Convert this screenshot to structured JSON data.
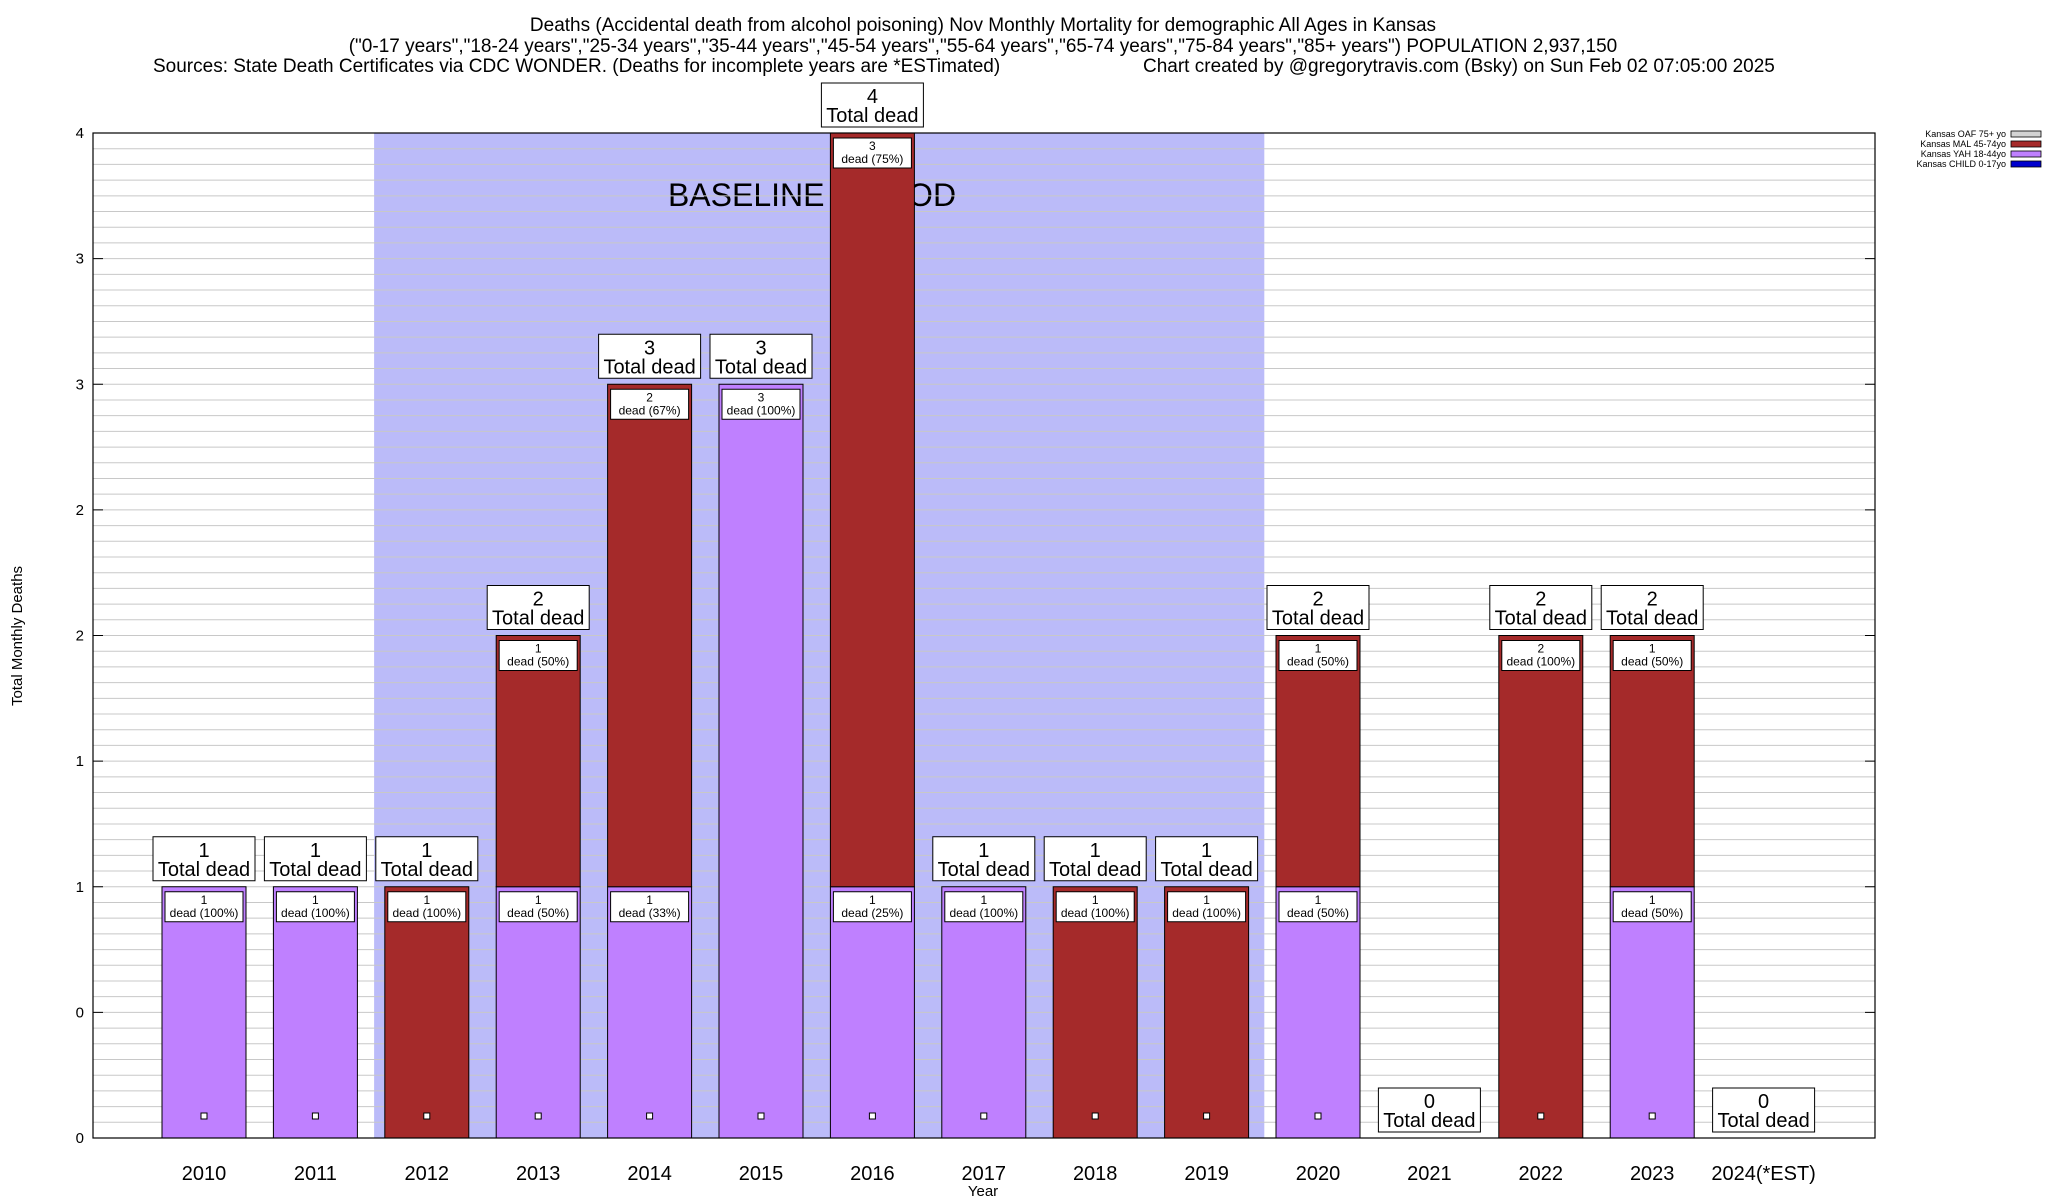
{
  "chart_data": {
    "type": "bar",
    "stacked": true,
    "title_lines": [
      "Deaths (Accidental death from alcohol poisoning) Nov Monthly Mortality for demographic All Ages in Kansas",
      "(\"0-17 years\",\"18-24 years\",\"25-34 years\",\"35-44 years\",\"45-54 years\",\"55-64 years\",\"65-74 years\",\"75-84 years\",\"85+ years\") POPULATION 2,937,150"
    ],
    "sources_note": "Sources: State Death Certificates via CDC WONDER. (Deaths for incomplete years are *ESTimated)",
    "credit": "Chart created by @gregorytravis.com (Bsky) on Sun Feb 02 07:05:00 2025",
    "xlabel": "Year",
    "ylabel": "Total Monthly Deaths",
    "ylim": [
      0,
      4
    ],
    "yticks": [
      0,
      0.5,
      1,
      1.5,
      2,
      2.5,
      3,
      3.5,
      4
    ],
    "ytick_labels": [
      "0",
      "0",
      "1",
      "1",
      "2",
      "2",
      "3",
      "3",
      "4"
    ],
    "grid": true,
    "legend_position": "top-right, outside plot",
    "categories": [
      "2010",
      "2011",
      "2012",
      "2013",
      "2014",
      "2015",
      "2016",
      "2017",
      "2018",
      "2019",
      "2020",
      "2021",
      "2022",
      "2023",
      "2024(*EST)"
    ],
    "series": [
      {
        "name": "Kansas OAF 75+ yo",
        "color": "#d3d3d3",
        "values": [
          0,
          0,
          0,
          0,
          0,
          0,
          0,
          0,
          0,
          0,
          0,
          0,
          0,
          0,
          0
        ]
      },
      {
        "name": "Kansas MAL 45-74yo",
        "color": "#a52a2a",
        "values": [
          0,
          0,
          1,
          1,
          2,
          0,
          3,
          0,
          1,
          1,
          1,
          0,
          2,
          1,
          0
        ]
      },
      {
        "name": "Kansas YAH 18-44yo",
        "color": "#bf80ff",
        "values": [
          1,
          1,
          0,
          1,
          1,
          3,
          1,
          1,
          0,
          0,
          1,
          0,
          0,
          1,
          0
        ]
      },
      {
        "name": "Kansas CHILD 0-17yo",
        "color": "#0000cd",
        "values": [
          0,
          0,
          0,
          0,
          0,
          0,
          0,
          0,
          0,
          0,
          0,
          0,
          0,
          0,
          0
        ]
      }
    ],
    "totals": [
      1,
      1,
      1,
      2,
      3,
      3,
      4,
      1,
      1,
      1,
      2,
      0,
      2,
      2,
      0
    ],
    "total_label": "Total dead",
    "segment_labels": [
      [
        {
          "series": "Kansas YAH 18-44yo",
          "count": "1",
          "text": "dead (100%)"
        }
      ],
      [
        {
          "series": "Kansas YAH 18-44yo",
          "count": "1",
          "text": "dead (100%)"
        }
      ],
      [
        {
          "series": "Kansas MAL 45-74yo",
          "count": "1",
          "text": "dead (100%)"
        }
      ],
      [
        {
          "series": "Kansas YAH 18-44yo",
          "count": "1",
          "text": "dead (50%)"
        },
        {
          "series": "Kansas MAL 45-74yo",
          "count": "1",
          "text": "dead (50%)"
        }
      ],
      [
        {
          "series": "Kansas YAH 18-44yo",
          "count": "1",
          "text": "dead (33%)"
        },
        {
          "series": "Kansas MAL 45-74yo",
          "count": "2",
          "text": "dead (67%)"
        }
      ],
      [
        {
          "series": "Kansas YAH 18-44yo",
          "count": "3",
          "text": "dead (100%)"
        }
      ],
      [
        {
          "series": "Kansas YAH 18-44yo",
          "count": "1",
          "text": "dead (25%)"
        },
        {
          "series": "Kansas MAL 45-74yo",
          "count": "3",
          "text": "dead (75%)"
        }
      ],
      [
        {
          "series": "Kansas YAH 18-44yo",
          "count": "1",
          "text": "dead (100%)"
        }
      ],
      [
        {
          "series": "Kansas MAL 45-74yo",
          "count": "1",
          "text": "dead (100%)"
        }
      ],
      [
        {
          "series": "Kansas MAL 45-74yo",
          "count": "1",
          "text": "dead (100%)"
        }
      ],
      [
        {
          "series": "Kansas YAH 18-44yo",
          "count": "1",
          "text": "dead (50%)"
        },
        {
          "series": "Kansas MAL 45-74yo",
          "count": "1",
          "text": "dead (50%)"
        }
      ],
      [],
      [
        {
          "series": "Kansas MAL 45-74yo",
          "count": "2",
          "text": "dead (100%)"
        }
      ],
      [
        {
          "series": "Kansas YAH 18-44yo",
          "count": "1",
          "text": "dead (50%)"
        },
        {
          "series": "Kansas MAL 45-74yo",
          "count": "1",
          "text": "dead (50%)"
        }
      ],
      []
    ],
    "baseline_period": {
      "label": "BASELINE PERIOD",
      "from": "2012",
      "to": "2019",
      "color": "#bbbbf9"
    }
  }
}
